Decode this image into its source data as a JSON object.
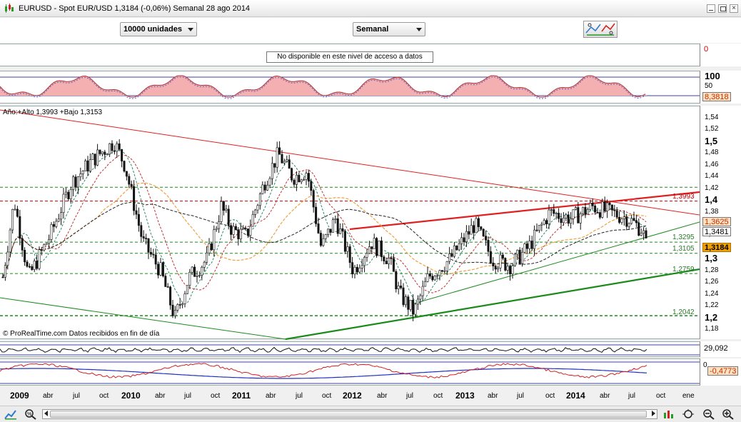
{
  "window": {
    "title": "EURUSD - Spot EUR/USD     1,3184 (-0,06%)     Semanal  28 ago 2014",
    "close_glyph": "×"
  },
  "toolbar": {
    "units_label": "10000 unidades",
    "period_label": "Semanal"
  },
  "volume_panel": {
    "notice": "No disponible en este nivel de acceso a datos",
    "scale_value": "0"
  },
  "rsi_panel": {
    "ticks": [
      "100",
      "50"
    ],
    "value": "8,3818"
  },
  "main_panel": {
    "header": "Año:+Alto 1,3993 +Bajo 1,3153",
    "watermark": "© ProRealTime.com  Datos recibidos en fin de día",
    "ticks": [
      "1,54",
      "1,52",
      "1,5",
      "1,48",
      "1,46",
      "1,44",
      "1,42",
      "1,4",
      "1,38",
      "1,36",
      "1,34",
      "1,32",
      "1,3",
      "1,28",
      "1,26",
      "1,24",
      "1,22",
      "1,2",
      "1,18"
    ],
    "level_labels": [
      "1,3993",
      "1,3295",
      "1,3105",
      "1,2759",
      "1,2042"
    ],
    "price_tags": {
      "current": "1,3184",
      "ma_fast": "1,3625",
      "ma_slow": "1,3481"
    },
    "colors": {
      "resistance": "#e02020",
      "support": "#1a8a1a",
      "ma_orange": "#f0a040",
      "ma_black": "#222222",
      "ma_red_dashed": "#c03030",
      "ma_green_dashed": "#2a8a6a"
    }
  },
  "volume2_panel": {
    "value": "29,092"
  },
  "macd_panel": {
    "zero": "0",
    "value": "-0,4773"
  },
  "date_axis": [
    {
      "label": "2009",
      "year": true
    },
    {
      "label": "abr",
      "year": false
    },
    {
      "label": "jul",
      "year": false
    },
    {
      "label": "oct",
      "year": false
    },
    {
      "label": "2010",
      "year": true
    },
    {
      "label": "abr",
      "year": false
    },
    {
      "label": "jul",
      "year": false
    },
    {
      "label": "oct",
      "year": false
    },
    {
      "label": "2011",
      "year": true
    },
    {
      "label": "abr",
      "year": false
    },
    {
      "label": "jul",
      "year": false
    },
    {
      "label": "oct",
      "year": false
    },
    {
      "label": "2012",
      "year": true
    },
    {
      "label": "abr",
      "year": false
    },
    {
      "label": "jul",
      "year": false
    },
    {
      "label": "oct",
      "year": false
    },
    {
      "label": "2013",
      "year": true
    },
    {
      "label": "abr",
      "year": false
    },
    {
      "label": "jul",
      "year": false
    },
    {
      "label": "oct",
      "year": false
    },
    {
      "label": "2014",
      "year": true
    },
    {
      "label": "abr",
      "year": false
    },
    {
      "label": "jul",
      "year": false
    },
    {
      "label": "oct",
      "year": false
    },
    {
      "label": "ene",
      "year": false
    }
  ],
  "bottom_icons": [
    "chart-type-icon",
    "zoom-settings-icon",
    "indicators-icon",
    "zoom-fit-icon",
    "zoom-out-icon",
    "zoom-in-icon"
  ]
}
